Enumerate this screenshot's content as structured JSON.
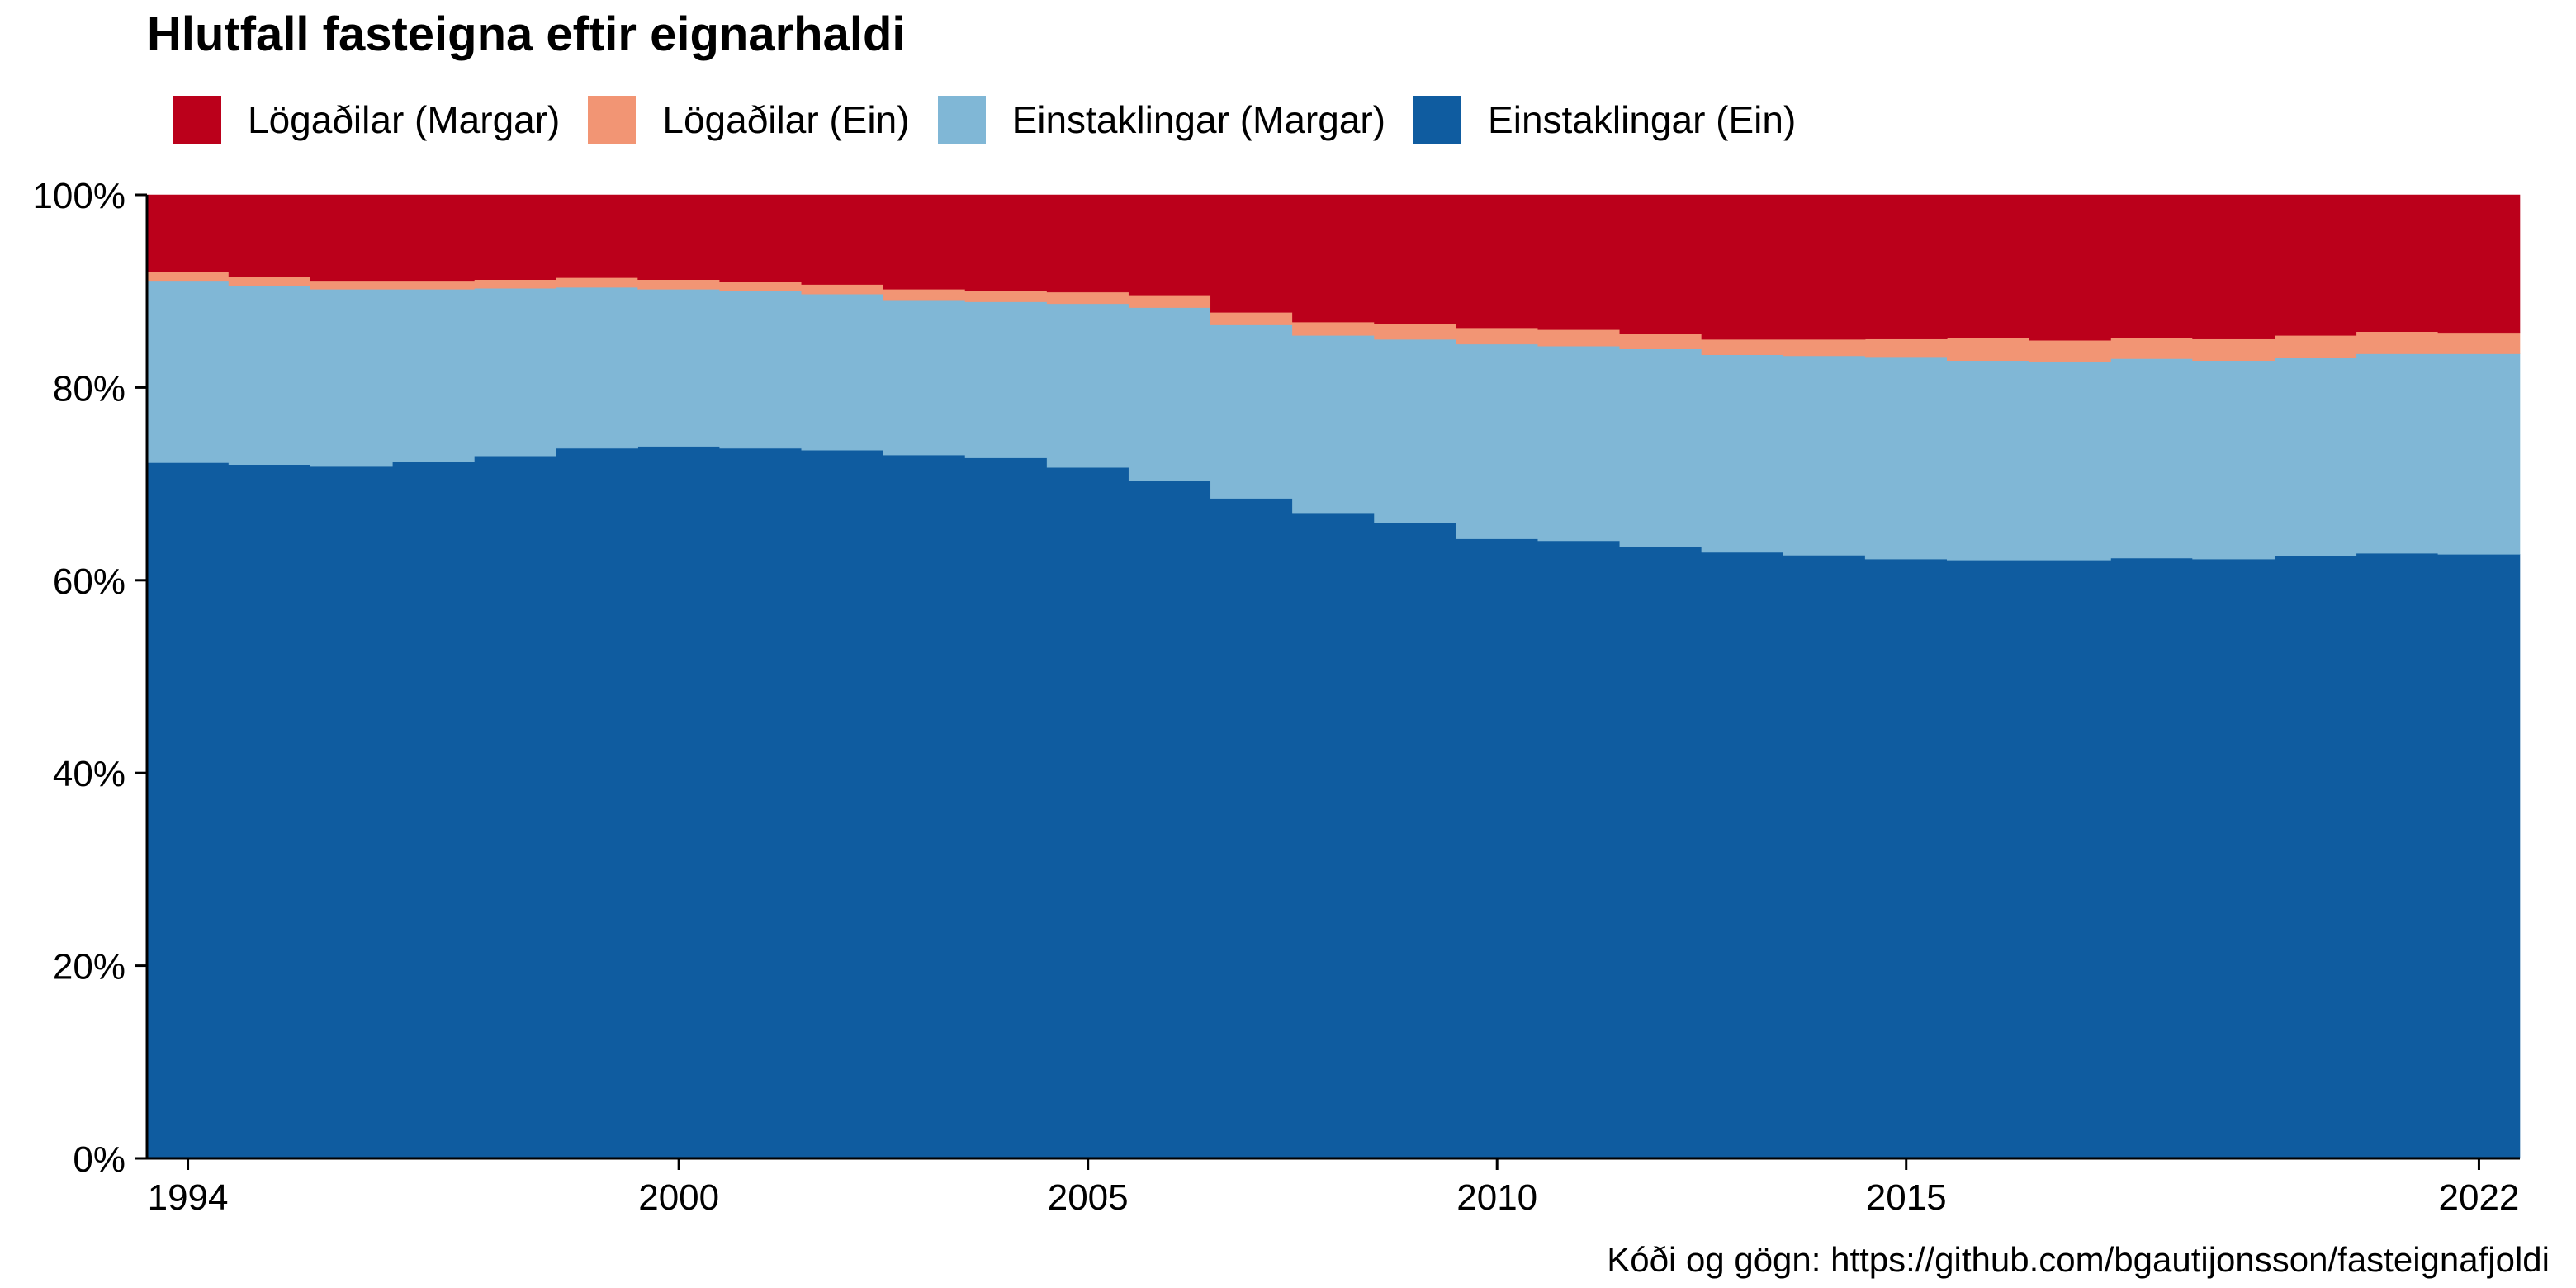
{
  "chart_data": {
    "type": "area",
    "stacked": true,
    "step": true,
    "title": "Hlutfall fasteigna eftir eignarhaldi",
    "xlabel": "",
    "ylabel": "",
    "caption": "Kóði og gögn: https://github.com/bgautijonsson/fasteignafjoldi",
    "x": [
      1994,
      1995,
      1996,
      1997,
      1998,
      1999,
      2000,
      2001,
      2002,
      2003,
      2004,
      2005,
      2006,
      2007,
      2008,
      2009,
      2010,
      2011,
      2012,
      2013,
      2014,
      2015,
      2016,
      2017,
      2018,
      2019,
      2020,
      2021,
      2022
    ],
    "xlim": [
      1993.5,
      2022.5
    ],
    "x_ticks": [
      1994,
      2000,
      2005,
      2010,
      2015,
      2022
    ],
    "x_tick_labels": [
      "1994",
      "2000",
      "2005",
      "2010",
      "2015",
      "2022"
    ],
    "ylim": [
      0,
      1
    ],
    "y_ticks": [
      0,
      0.2,
      0.4,
      0.6,
      0.8,
      1.0
    ],
    "y_tick_labels": [
      "0%",
      "20%",
      "40%",
      "60%",
      "80%",
      "100%"
    ],
    "legend_position": "top-left",
    "series": [
      {
        "name": "Einstaklingar (Ein)",
        "color": "#0F5CA0",
        "values": [
          0.722,
          0.72,
          0.718,
          0.723,
          0.729,
          0.737,
          0.739,
          0.737,
          0.735,
          0.73,
          0.727,
          0.717,
          0.703,
          0.685,
          0.67,
          0.66,
          0.643,
          0.641,
          0.635,
          0.629,
          0.626,
          0.622,
          0.621,
          0.621,
          0.623,
          0.622,
          0.625,
          0.628,
          0.627
        ]
      },
      {
        "name": "Einstaklingar (Margar)",
        "color": "#80B7D6",
        "values": [
          0.189,
          0.186,
          0.184,
          0.179,
          0.174,
          0.167,
          0.163,
          0.163,
          0.162,
          0.161,
          0.162,
          0.17,
          0.18,
          0.18,
          0.184,
          0.19,
          0.202,
          0.202,
          0.205,
          0.205,
          0.207,
          0.21,
          0.207,
          0.206,
          0.207,
          0.206,
          0.206,
          0.207,
          0.208
        ]
      },
      {
        "name": "Lögaðilar (Ein)",
        "color": "#F29574",
        "values": [
          0.009,
          0.009,
          0.009,
          0.009,
          0.009,
          0.01,
          0.01,
          0.01,
          0.01,
          0.011,
          0.011,
          0.012,
          0.013,
          0.013,
          0.014,
          0.016,
          0.017,
          0.017,
          0.016,
          0.016,
          0.017,
          0.019,
          0.024,
          0.022,
          0.022,
          0.023,
          0.023,
          0.023,
          0.022
        ]
      },
      {
        "name": "Lögaðilar (Margar)",
        "color": "#BB001B",
        "values": [
          0.08,
          0.085,
          0.089,
          0.089,
          0.088,
          0.086,
          0.088,
          0.09,
          0.093,
          0.098,
          0.1,
          0.101,
          0.104,
          0.122,
          0.132,
          0.134,
          0.138,
          0.14,
          0.144,
          0.15,
          0.15,
          0.149,
          0.148,
          0.151,
          0.148,
          0.149,
          0.146,
          0.142,
          0.143
        ]
      }
    ],
    "legend_order": [
      "Lögaðilar (Margar)",
      "Lögaðilar (Ein)",
      "Einstaklingar (Margar)",
      "Einstaklingar (Ein)"
    ]
  }
}
